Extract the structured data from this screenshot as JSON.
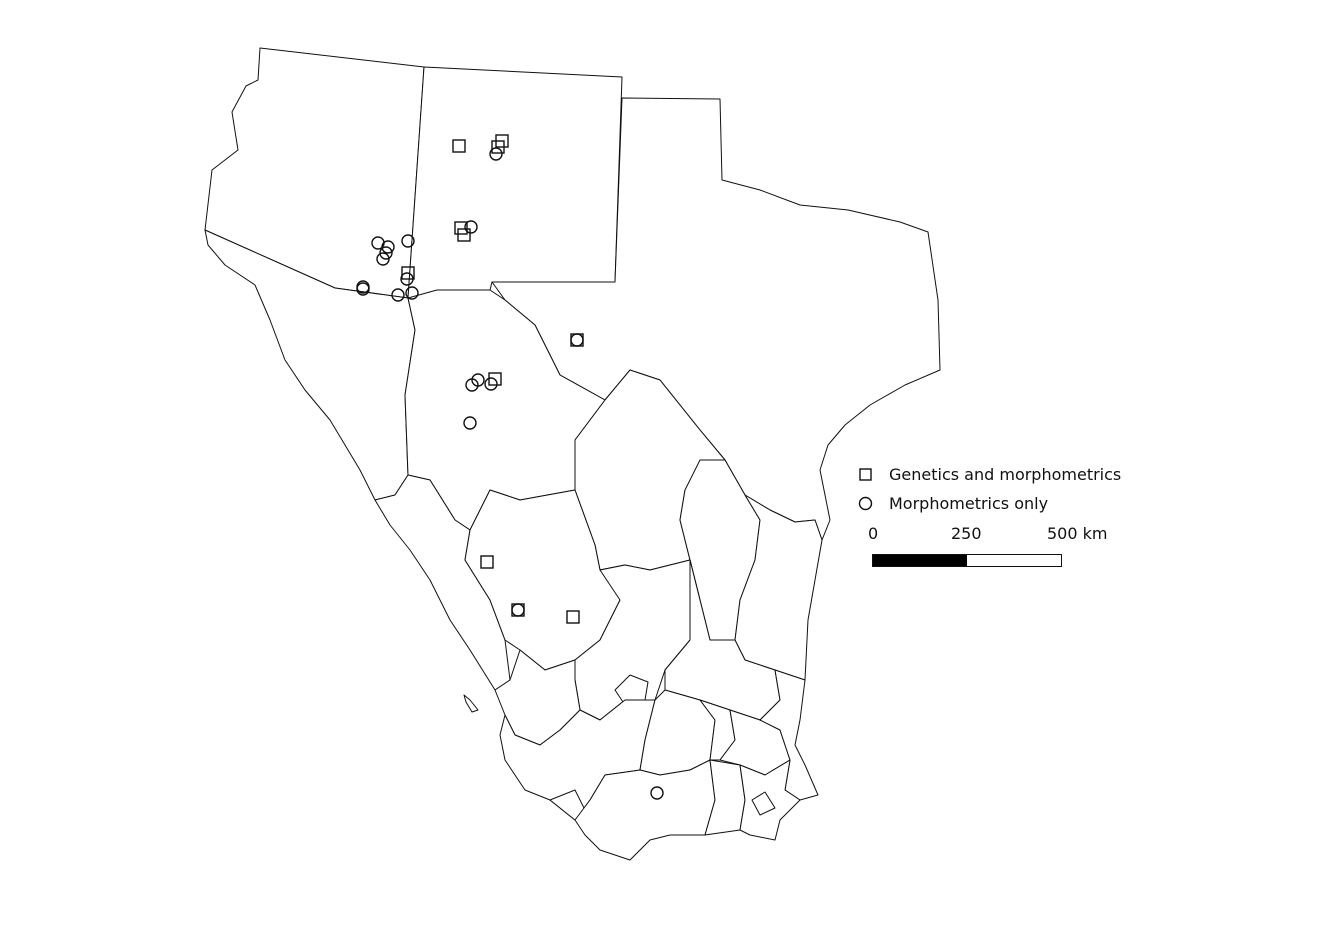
{
  "legend": {
    "items": [
      {
        "symbol": "square",
        "label": "Genetics and morphometrics"
      },
      {
        "symbol": "circle",
        "label": "Morphometrics only"
      }
    ]
  },
  "scale": {
    "ticks": [
      "0",
      "250",
      "500 km"
    ]
  },
  "colors": {
    "outline": "#111111",
    "fill": "#ffffff",
    "bar": "#000000"
  }
}
